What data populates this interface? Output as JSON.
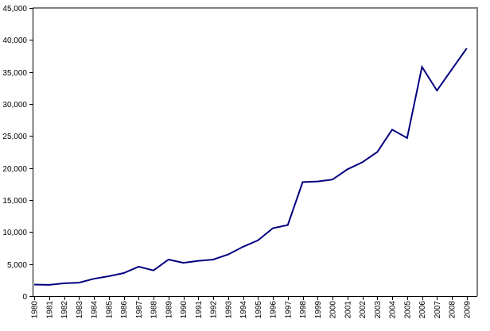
{
  "chart": {
    "background": "#ffffff",
    "line_color": "#000080",
    "axis_color": "#000000",
    "frame_color": "#808080",
    "text_color": "#000000"
  },
  "chart_data": {
    "type": "line",
    "title": "",
    "xlabel": "",
    "ylabel": "",
    "legend": false,
    "grid": false,
    "x_label_rotation": -90,
    "ylim": [
      0,
      45000
    ],
    "ytick_step": 5000,
    "ytick_labels": [
      "0",
      "5,000",
      "10,000",
      "15,000",
      "20,000",
      "25,000",
      "30,000",
      "35,000",
      "40,000",
      "45,000"
    ],
    "xtick_labels": [
      "1980",
      "1981",
      "1982",
      "1983",
      "1984",
      "1985",
      "1986",
      "1987",
      "1988",
      "1989",
      "1990",
      "1991",
      "1992",
      "1993",
      "1994",
      "1995",
      "1996",
      "1997",
      "1998",
      "1999",
      "2000",
      "2001",
      "2002",
      "2003",
      "2004",
      "2005",
      "2006",
      "2007",
      "2008",
      "2009"
    ],
    "x": [
      1980,
      1981,
      1982,
      1983,
      1984,
      1985,
      1986,
      1987,
      1988,
      1989,
      1990,
      1991,
      1992,
      1993,
      1994,
      1995,
      1996,
      1997,
      1998,
      1999,
      2000,
      2001,
      2002,
      2003,
      2004,
      2005,
      2006,
      2007,
      2008,
      2009
    ],
    "series": [
      {
        "name": "",
        "values": [
          1800,
          1750,
          2000,
          2100,
          2700,
          3100,
          3600,
          4600,
          4000,
          5700,
          5200,
          5500,
          5700,
          6500,
          7700,
          8700,
          10600,
          11100,
          17800,
          17900,
          18200,
          19800,
          20900,
          22500,
          26000,
          24700,
          35800,
          32100,
          35400,
          38700
        ]
      }
    ]
  }
}
